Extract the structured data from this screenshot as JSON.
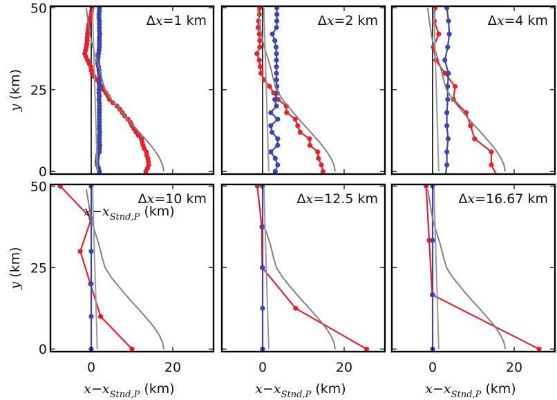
{
  "colors": {
    "scheme_a": "#e8202a",
    "scheme_b": "#3a46b0",
    "reference": "#808080",
    "reference_2": "#9a9a9a",
    "zero_line": "#000000",
    "frame": "#000000"
  },
  "chart_data": [
    {
      "type": "line",
      "panel_label": {
        "prefix": "Δ",
        "var": "x",
        "suffix": "=1 km"
      },
      "xlabel": {
        "var": "x",
        "minus": "−",
        "var2": "x",
        "sub": "Stnd,P",
        "unit": " (km)"
      },
      "ylabel": {
        "var": "y",
        "unit": " (km)"
      },
      "xlim": [
        -10,
        30
      ],
      "ylim": [
        -0.8,
        50.5
      ],
      "xticks": [
        0,
        20
      ],
      "yticks": [
        0,
        25,
        50
      ],
      "xtick_labels": [],
      "ytick_labels": [
        "0",
        "25",
        "50"
      ],
      "zero_line": true,
      "series": [
        {
          "name": "red",
          "color_key": "scheme_a",
          "markers": true,
          "y": [
            0,
            1,
            2,
            3,
            4,
            5,
            6,
            7,
            8,
            9,
            10,
            11,
            12,
            13,
            14,
            15,
            16,
            17,
            18,
            19,
            20,
            21,
            22,
            23,
            24,
            25,
            26,
            27,
            28,
            29,
            30,
            31,
            32,
            33,
            34,
            35,
            36,
            37,
            38,
            39,
            40,
            41,
            42,
            43,
            44,
            45,
            46,
            47,
            48,
            49,
            50
          ],
          "x": [
            13.4,
            13.8,
            14.1,
            14.0,
            13.9,
            13.6,
            13.5,
            13.0,
            12.7,
            12.5,
            12.3,
            11.6,
            11.0,
            10.5,
            10.0,
            9.6,
            9.0,
            8.2,
            7.6,
            7.0,
            6.3,
            5.3,
            4.5,
            4.1,
            3.6,
            3.0,
            2.5,
            1.9,
            1.4,
            0.7,
            0.2,
            0.0,
            -0.1,
            -0.5,
            -0.9,
            -1.3,
            -1.6,
            -1.4,
            -1.2,
            -1.1,
            -1.0,
            -1.0,
            -0.9,
            -0.8,
            -0.7,
            -0.6,
            -0.4,
            -0.2,
            0.0,
            0.1,
            0.2
          ]
        },
        {
          "name": "blue",
          "color_key": "scheme_b",
          "markers": true,
          "y": [
            0,
            1,
            2,
            3,
            4,
            5,
            6,
            7,
            8,
            9,
            10,
            11,
            12,
            13,
            14,
            15,
            16,
            17,
            18,
            19,
            20,
            21,
            22,
            23,
            24,
            25,
            26,
            27,
            28,
            29,
            30,
            31,
            32,
            33,
            34,
            35,
            36,
            37,
            38,
            39,
            40,
            41,
            42,
            43,
            44,
            45,
            46,
            47,
            48,
            49,
            50
          ],
          "x": [
            2.0,
            1.8,
            1.5,
            1.4,
            1.5,
            1.6,
            2.0,
            2.0,
            2.1,
            2.0,
            2.0,
            2.0,
            2.1,
            2.0,
            2.0,
            2.0,
            2.0,
            2.0,
            2.0,
            2.0,
            2.0,
            2.0,
            1.9,
            2.0,
            1.9,
            1.9,
            2.0,
            2.0,
            2.1,
            2.1,
            2.0,
            1.9,
            1.8,
            1.6,
            1.6,
            1.7,
            1.8,
            1.9,
            2.0,
            2.0,
            2.0,
            2.0,
            2.1,
            2.0,
            2.0,
            2.0,
            2.0,
            1.9,
            1.9,
            2.0,
            2.0
          ]
        },
        {
          "name": "reference",
          "color_key": "reference",
          "markers": false,
          "y": [
            50,
            46,
            42,
            40,
            38,
            36,
            34,
            32,
            30,
            28,
            25,
            22,
            20,
            17,
            15,
            12,
            10,
            8,
            6,
            4,
            2,
            0
          ],
          "x": [
            -1.2,
            -0.8,
            -0.3,
            0.0,
            0.4,
            0.9,
            1.4,
            1.9,
            2.3,
            2.7,
            3.4,
            4.9,
            6.2,
            8.2,
            9.6,
            11.8,
            13.2,
            14.6,
            15.8,
            16.8,
            17.5,
            17.8
          ]
        },
        {
          "name": "reference-2",
          "color_key": "reference_2",
          "markers": false,
          "y": [
            50,
            0
          ],
          "x": [
            0.3,
            1.5
          ]
        }
      ]
    },
    {
      "type": "line",
      "panel_label": {
        "prefix": "Δ",
        "var": "x",
        "suffix": "=2 km"
      },
      "xlim": [
        -10,
        30
      ],
      "ylim": [
        -0.8,
        50.5
      ],
      "xticks": [
        0,
        20
      ],
      "yticks": [
        0,
        25,
        50
      ],
      "xtick_labels": [],
      "ytick_labels": [],
      "zero_line": true,
      "series": [
        {
          "name": "red",
          "color_key": "scheme_a",
          "markers": true,
          "y": [
            0,
            2,
            4,
            6,
            8,
            10,
            12,
            14,
            16,
            18,
            20,
            22,
            24,
            26,
            28,
            30,
            32,
            34,
            36,
            38,
            40,
            42,
            44,
            46,
            48,
            50
          ],
          "x": [
            14.8,
            14.4,
            13.7,
            13.5,
            11.6,
            11.5,
            9.2,
            8.6,
            8.0,
            5.9,
            5.8,
            3.8,
            2.7,
            1.7,
            0.4,
            -0.4,
            -0.6,
            -0.8,
            -1.4,
            -0.7,
            -0.7,
            -0.8,
            -1.1,
            -1.0,
            -0.8,
            -0.7
          ]
        },
        {
          "name": "blue",
          "color_key": "scheme_b",
          "markers": true,
          "y": [
            0,
            2,
            4,
            6,
            8,
            10,
            12,
            14,
            16,
            18,
            20,
            22,
            24,
            26,
            28,
            30,
            32,
            34,
            36,
            38,
            40,
            42,
            44,
            46,
            48,
            50
          ],
          "x": [
            3.1,
            3.7,
            3.1,
            2.0,
            3.7,
            3.7,
            2.3,
            2.0,
            3.7,
            2.0,
            3.4,
            3.0,
            3.6,
            3.5,
            3.4,
            3.4,
            3.4,
            3.4,
            3.4,
            3.3,
            3.0,
            2.4,
            3.4,
            3.5,
            3.5,
            3.5
          ]
        },
        {
          "name": "reference",
          "color_key": "reference",
          "markers": false,
          "y": [
            50,
            46,
            42,
            40,
            38,
            36,
            34,
            32,
            30,
            28,
            25,
            22,
            20,
            17,
            15,
            12,
            10,
            8,
            6,
            4,
            2,
            0
          ],
          "x": [
            -1.2,
            -0.8,
            -0.3,
            0.0,
            0.4,
            0.9,
            1.4,
            1.9,
            2.3,
            2.7,
            3.4,
            4.9,
            6.2,
            8.2,
            9.6,
            11.8,
            13.2,
            14.6,
            15.8,
            16.8,
            17.5,
            17.8
          ]
        },
        {
          "name": "reference-2",
          "color_key": "reference_2",
          "markers": false,
          "y": [
            50,
            0
          ],
          "x": [
            0.3,
            1.5
          ]
        }
      ]
    },
    {
      "type": "line",
      "panel_label": {
        "prefix": "Δ",
        "var": "x",
        "suffix": "=4 km"
      },
      "xlim": [
        -10,
        30
      ],
      "ylim": [
        -0.8,
        50.5
      ],
      "xticks": [
        0,
        20
      ],
      "yticks": [
        0,
        25,
        50
      ],
      "xtick_labels": [],
      "ytick_labels": [],
      "zero_line": true,
      "series": [
        {
          "name": "red",
          "color_key": "scheme_a",
          "markers": true,
          "y": [
            2,
            6,
            10,
            14,
            18,
            22,
            26,
            30,
            34,
            38,
            42,
            46,
            50
          ],
          "x": [
            14.4,
            14.4,
            10.3,
            9.3,
            8.2,
            5.1,
            5.5,
            3.0,
            0.8,
            0.2,
            1.5,
            0.4,
            0.6
          ],
          "extend_to": {
            "x": 15.6,
            "y": -0.8
          }
        },
        {
          "name": "blue",
          "color_key": "scheme_b",
          "markers": true,
          "y": [
            2,
            6,
            10,
            14,
            18,
            22,
            26,
            30,
            34,
            38,
            42,
            46,
            50
          ],
          "x": [
            3.5,
            3.5,
            3.8,
            3.5,
            3.5,
            3.7,
            3.7,
            3.9,
            3.0,
            3.7,
            4.1,
            3.9,
            3.5
          ],
          "extend_to": {
            "x": 3.2,
            "y": -0.8
          }
        },
        {
          "name": "reference",
          "color_key": "reference",
          "markers": false,
          "y": [
            50,
            46,
            42,
            40,
            38,
            36,
            34,
            32,
            30,
            28,
            25,
            22,
            20,
            17,
            15,
            12,
            10,
            8,
            6,
            4,
            2,
            0
          ],
          "x": [
            -1.2,
            -0.8,
            -0.3,
            0.0,
            0.4,
            0.9,
            1.4,
            1.9,
            2.3,
            2.7,
            3.4,
            4.9,
            6.2,
            8.2,
            9.6,
            11.8,
            13.2,
            14.6,
            15.8,
            16.8,
            17.5,
            17.8
          ]
        },
        {
          "name": "reference-2",
          "color_key": "reference_2",
          "markers": false,
          "y": [
            50,
            0
          ],
          "x": [
            0.3,
            1.5
          ]
        }
      ]
    },
    {
      "type": "line",
      "panel_label": {
        "prefix": "Δ",
        "var": "x",
        "suffix": "=10 km"
      },
      "xlabel": {
        "var": "x",
        "minus": "−",
        "var2": "x",
        "sub": "Stnd,P",
        "unit": " (km)"
      },
      "ylabel": {
        "var": "y",
        "unit": " (km)"
      },
      "xlim": [
        -10,
        30
      ],
      "ylim": [
        -0.8,
        50.5
      ],
      "xticks": [
        0,
        20
      ],
      "yticks": [
        0,
        25,
        50
      ],
      "xtick_labels": [
        "0",
        "20"
      ],
      "ytick_labels": [
        "0",
        "25",
        "50"
      ],
      "zero_line": false,
      "series": [
        {
          "name": "red",
          "color_key": "scheme_a",
          "markers": true,
          "y": [
            0,
            10,
            20,
            30,
            40,
            50
          ],
          "x": [
            10.0,
            2.3,
            -0.2,
            -2.7,
            0.0,
            -7.6
          ]
        },
        {
          "name": "blue",
          "color_key": "scheme_b",
          "markers": true,
          "y": [
            0,
            10,
            20,
            30,
            40,
            50
          ],
          "x": [
            0,
            0,
            0,
            0,
            0,
            0
          ]
        },
        {
          "name": "reference",
          "color_key": "reference",
          "markers": false,
          "y": [
            49,
            46,
            42,
            40,
            38,
            36,
            34,
            32,
            30,
            28,
            25,
            22,
            20,
            17,
            15,
            12,
            10,
            8,
            6,
            4,
            2,
            0
          ],
          "x": [
            -1.2,
            -0.8,
            -0.3,
            0.0,
            0.4,
            0.9,
            1.4,
            1.9,
            2.3,
            2.7,
            3.4,
            4.9,
            6.2,
            8.2,
            9.6,
            11.8,
            13.2,
            14.6,
            15.8,
            16.8,
            17.5,
            17.8
          ]
        },
        {
          "name": "reference-2",
          "color_key": "reference_2",
          "markers": false,
          "y": [
            50,
            0
          ],
          "x": [
            0.3,
            1.5
          ]
        }
      ]
    },
    {
      "type": "line",
      "panel_label": {
        "prefix": "Δ",
        "var": "x",
        "suffix": "=12.5 km"
      },
      "xlabel": {
        "var": "x",
        "minus": "−",
        "var2": "x",
        "sub": "Stnd,P",
        "unit": " (km)"
      },
      "xlim": [
        -10,
        30
      ],
      "ylim": [
        -0.8,
        50.5
      ],
      "xticks": [
        0,
        20
      ],
      "yticks": [
        0,
        25,
        50
      ],
      "xtick_labels": [
        "0",
        "20"
      ],
      "ytick_labels": [],
      "zero_line": false,
      "series": [
        {
          "name": "red",
          "color_key": "scheme_a",
          "markers": true,
          "y": [
            0,
            12.5,
            25,
            37.5,
            50
          ],
          "x": [
            25.5,
            8.1,
            -0.1,
            -0.2,
            -1.3
          ]
        },
        {
          "name": "blue",
          "color_key": "scheme_b",
          "markers": true,
          "y": [
            0,
            12.5,
            25,
            37.5,
            50
          ],
          "x": [
            0,
            0,
            0,
            0,
            0
          ]
        },
        {
          "name": "reference",
          "color_key": "reference",
          "markers": false,
          "y": [
            37.5,
            36,
            34,
            32,
            30,
            28,
            25,
            22,
            20,
            17,
            15,
            12,
            10,
            8,
            6,
            4,
            2,
            0
          ],
          "x": [
            0.3,
            0.9,
            1.4,
            1.9,
            2.3,
            2.7,
            3.4,
            4.9,
            6.2,
            8.2,
            9.6,
            11.8,
            13.2,
            14.6,
            15.8,
            16.8,
            17.5,
            17.8
          ]
        },
        {
          "name": "reference-2",
          "color_key": "reference_2",
          "markers": false,
          "y": [
            50,
            0
          ],
          "x": [
            0.3,
            1.5
          ]
        }
      ]
    },
    {
      "type": "line",
      "panel_label": {
        "prefix": "Δ",
        "var": "x",
        "suffix": "=16.67 km"
      },
      "xlabel": {
        "var": "x",
        "minus": "−",
        "var2": "x",
        "sub": "Stnd,P",
        "unit": " (km)"
      },
      "xlim": [
        -10,
        30
      ],
      "ylim": [
        -0.8,
        50.5
      ],
      "xticks": [
        0,
        20
      ],
      "yticks": [
        0,
        25,
        50
      ],
      "xtick_labels": [
        "0",
        "20"
      ],
      "ytick_labels": [],
      "zero_line": false,
      "series": [
        {
          "name": "red",
          "color_key": "scheme_a",
          "markers": true,
          "y": [
            0,
            16.67,
            33.33,
            50
          ],
          "x": [
            26.1,
            -0.1,
            -0.85,
            -1.6
          ]
        },
        {
          "name": "blue",
          "color_key": "scheme_b",
          "markers": true,
          "y": [
            0,
            16.67,
            33.33,
            50
          ],
          "x": [
            0,
            0,
            0,
            0
          ]
        },
        {
          "name": "reference",
          "color_key": "reference",
          "markers": false,
          "y": [
            49,
            46,
            42,
            40,
            38,
            36,
            34,
            32,
            30,
            28,
            25,
            22,
            20,
            17,
            15,
            12,
            10,
            8,
            6,
            4,
            2,
            0
          ],
          "x": [
            -1.2,
            -0.8,
            -0.3,
            0.0,
            0.4,
            0.9,
            1.4,
            1.9,
            2.3,
            2.7,
            3.4,
            4.9,
            6.2,
            8.2,
            9.6,
            11.8,
            13.2,
            14.6,
            15.8,
            16.8,
            17.5,
            17.8
          ]
        },
        {
          "name": "reference-2",
          "color_key": "reference_2",
          "markers": false,
          "y": [
            50,
            0
          ],
          "x": [
            0.3,
            1.5
          ]
        }
      ]
    }
  ]
}
